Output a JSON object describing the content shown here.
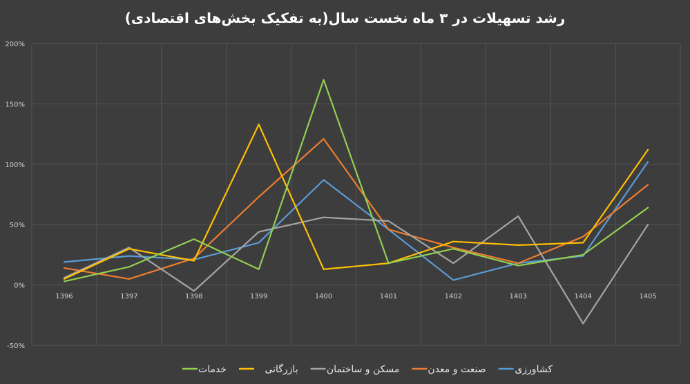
{
  "chart_data": {
    "type": "line",
    "title": "رشد تسهیلات در ۳ ماه نخست سال(به تفکیک بخش‌های اقتصادی)",
    "categories": [
      "1396",
      "1397",
      "1398",
      "1399",
      "1400",
      "1401",
      "1402",
      "1403",
      "1404",
      "1405"
    ],
    "ylim": [
      -0.5,
      2.0
    ],
    "yticks": [
      {
        "value": 2.0,
        "label": "200%"
      },
      {
        "value": 1.5,
        "label": "150%"
      },
      {
        "value": 1.0,
        "label": "100%"
      },
      {
        "value": 0.5,
        "label": "50%"
      },
      {
        "value": 0.0,
        "label": "0%"
      },
      {
        "value": -0.5,
        "label": "-50%"
      }
    ],
    "grid": true,
    "legend_position": "bottom",
    "series": [
      {
        "name": "کشاورزی",
        "color": "#5b9bd5",
        "values": [
          0.19,
          0.24,
          0.21,
          0.35,
          0.87,
          0.46,
          0.04,
          0.18,
          0.24,
          1.02
        ]
      },
      {
        "name": "صنعت و معدن",
        "color": "#ed7d31",
        "values": [
          0.14,
          0.05,
          0.22,
          0.73,
          1.21,
          0.46,
          0.31,
          0.18,
          0.4,
          0.83
        ]
      },
      {
        "name": "مسکن و ساختمان",
        "color": "#a5a5a5",
        "values": [
          0.06,
          0.31,
          -0.05,
          0.44,
          0.56,
          0.53,
          0.18,
          0.57,
          -0.32,
          0.5
        ]
      },
      {
        "name": "بازرگانی",
        "color": "#ffc000",
        "values": [
          0.05,
          0.3,
          0.2,
          1.33,
          0.13,
          0.18,
          0.36,
          0.33,
          0.35,
          1.12
        ]
      },
      {
        "name": "خدمات",
        "color": "#92d050",
        "values": [
          0.03,
          0.15,
          0.38,
          0.13,
          1.7,
          0.18,
          0.3,
          0.16,
          0.25,
          0.64
        ]
      }
    ]
  }
}
